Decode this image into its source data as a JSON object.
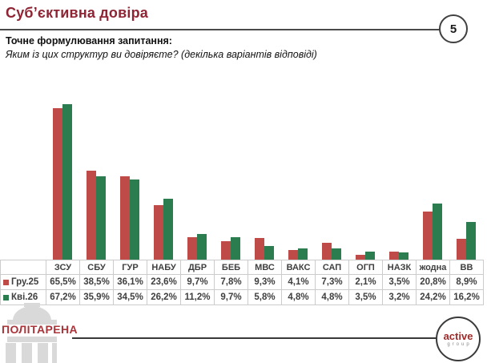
{
  "header": {
    "title": "Суб’єктивна довіра",
    "page_number": "5",
    "question_label": "Точне формулювання запитання:",
    "question_text": "Яким із цих структур ви довіряєте? (декілька варіантів відповіді)"
  },
  "chart_data": {
    "type": "bar",
    "title": "Суб’єктивна довіра",
    "categories": [
      "ЗСУ",
      "СБУ",
      "ГУР",
      "НАБУ",
      "ДБР",
      "БЕБ",
      "МВС",
      "ВАКС",
      "САП",
      "ОГП",
      "НАЗК",
      "жодна",
      "ВВ"
    ],
    "series": [
      {
        "name": "Гру.25",
        "color": "#be4b48",
        "values": [
          65.5,
          38.5,
          36.1,
          23.6,
          9.7,
          7.8,
          9.3,
          4.1,
          7.3,
          2.1,
          3.5,
          20.8,
          8.9
        ]
      },
      {
        "name": "Кві.26",
        "color": "#2b7c4f",
        "values": [
          67.2,
          35.9,
          34.5,
          26.2,
          11.2,
          9.7,
          5.8,
          4.8,
          4.8,
          3.5,
          3.2,
          24.2,
          16.2
        ]
      }
    ],
    "value_labels": [
      [
        "65,5%",
        "38,5%",
        "36,1%",
        "23,6%",
        "9,7%",
        "7,8%",
        "9,3%",
        "4,1%",
        "7,3%",
        "2,1%",
        "3,5%",
        "20,8%",
        "8,9%"
      ],
      [
        "67,2%",
        "35,9%",
        "34,5%",
        "26,2%",
        "11,2%",
        "9,7%",
        "5,8%",
        "4,8%",
        "4,8%",
        "3,5%",
        "3,2%",
        "24,2%",
        "16,2%"
      ]
    ],
    "xlabel": "",
    "ylabel": "",
    "ylim": [
      0,
      70
    ],
    "grid": false,
    "legend_position": "table-left"
  },
  "footer": {
    "left_logo_text": "ПОЛІТАРЕНА",
    "right_logo_line1": "active",
    "right_logo_line2": "group"
  }
}
